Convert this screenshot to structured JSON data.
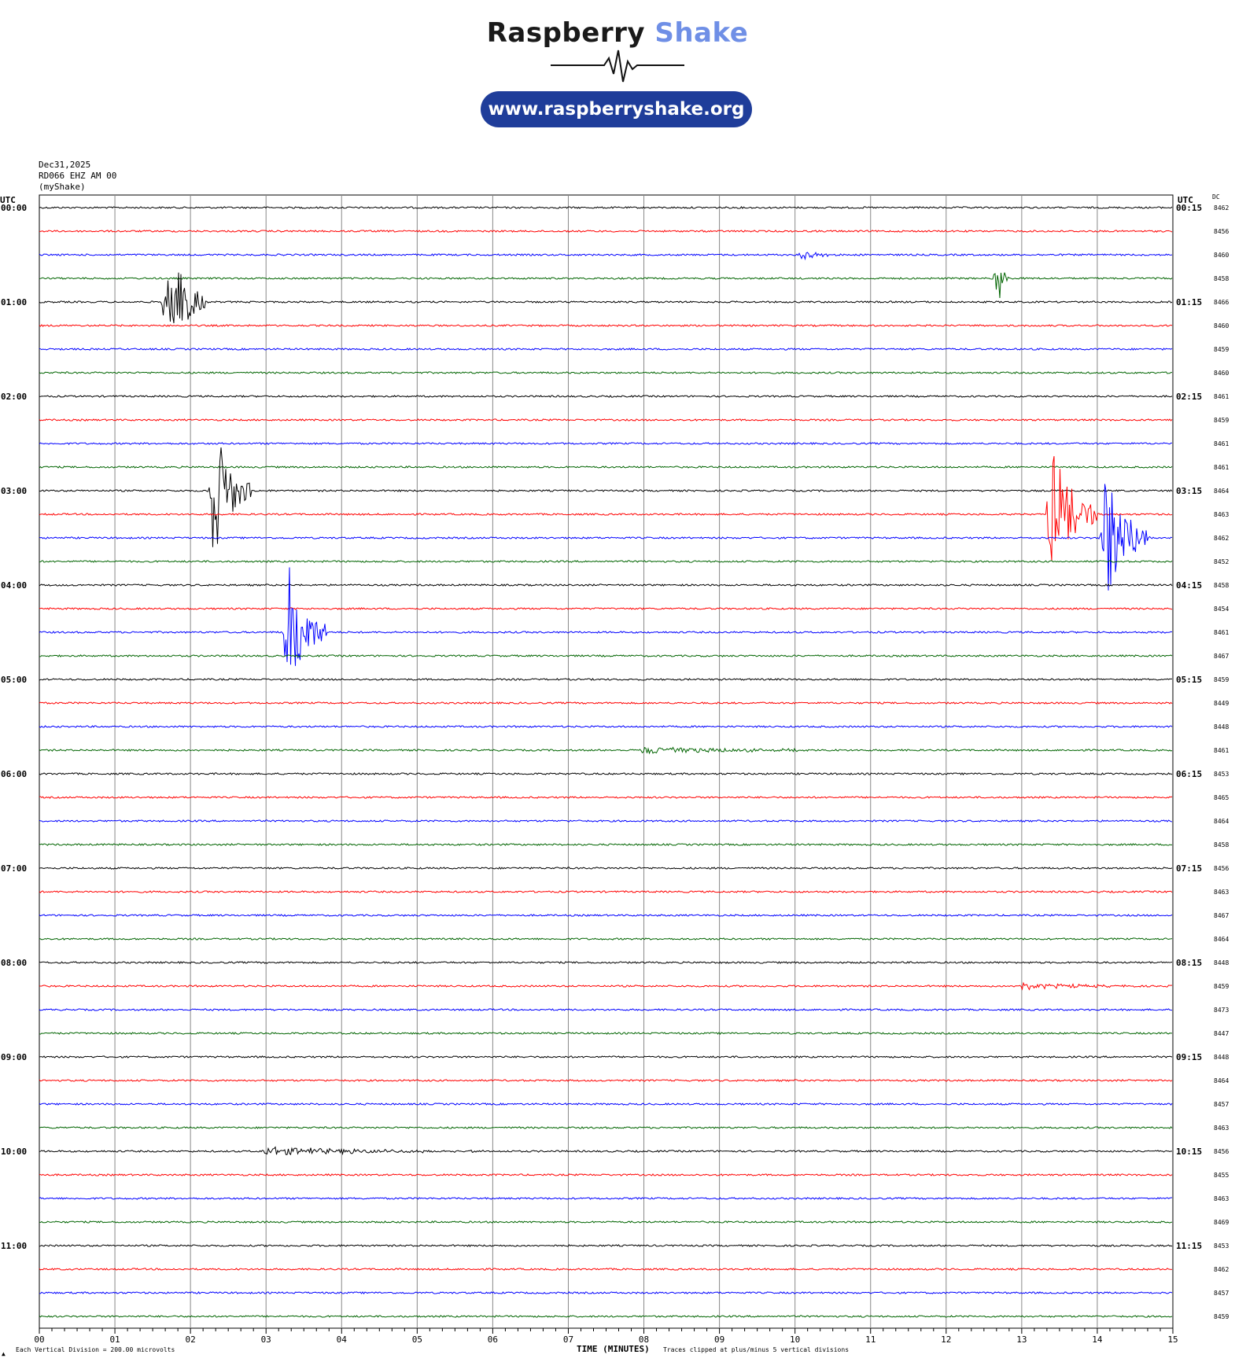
{
  "header": {
    "brand_main": "Raspberry",
    "brand_accent": "Shake",
    "url": "www.raspberryshake.org"
  },
  "meta": {
    "date": "Dec31,2025",
    "station": "RD066 EHZ AM 00",
    "network": "(myShake)"
  },
  "axis": {
    "left_caption": "UTC",
    "right_caption": "UTC",
    "dc_caption": "DC",
    "xlabel": "TIME (MINUTES)",
    "scale_note": "Each Vertical Division =  200.00 microvolts",
    "clip_note": "Traces clipped at plus/minus 5 vertical divisions",
    "corner_mark": "▲"
  },
  "colors": {
    "line_cycle": [
      "#000000",
      "#ff0000",
      "#0000ff",
      "#006400"
    ],
    "brand_dark": "#1a1a1a",
    "brand_accent": "#6f8fe6",
    "pill": "#1f3d9a",
    "grid": "#888888"
  },
  "chart_data": {
    "type": "line",
    "title": "",
    "xlabel": "TIME (MINUTES)",
    "ylabel": "UTC",
    "xlim": [
      0,
      15
    ],
    "x_ticks": [
      "00",
      "01",
      "02",
      "03",
      "04",
      "05",
      "06",
      "07",
      "08",
      "09",
      "10",
      "11",
      "12",
      "13",
      "14",
      "15"
    ],
    "left_labels": [
      "00:00",
      "01:00",
      "02:00",
      "03:00",
      "04:00",
      "05:00",
      "06:00",
      "07:00",
      "08:00",
      "09:00",
      "10:00",
      "11:00"
    ],
    "right_labels": [
      "00:15",
      "01:15",
      "02:15",
      "03:15",
      "04:15",
      "05:15",
      "06:15",
      "07:15",
      "08:15",
      "09:15",
      "10:15",
      "11:15"
    ],
    "dc_values": [
      8462,
      8456,
      8460,
      8458,
      8466,
      8460,
      8459,
      8460,
      8461,
      8459,
      8461,
      8461,
      8464,
      8463,
      8462,
      8452,
      8458,
      8454,
      8461,
      8467,
      8459,
      8449,
      8448,
      8461,
      8453,
      8465,
      8464,
      8458,
      8456,
      8463,
      8467,
      8464,
      8448,
      8459,
      8473,
      8447,
      8448,
      8464,
      8457,
      8463,
      8456,
      8455,
      8463,
      8469,
      8453,
      8462,
      8457,
      8459
    ],
    "rows_per_hour": 4,
    "minutes_per_row": 15,
    "clip_divisions": 5,
    "events": [
      {
        "row": 4,
        "minute": 1.7,
        "amplitude": 4.5,
        "duration": 0.5
      },
      {
        "row": 3,
        "minute": 12.7,
        "amplitude": 1.8,
        "duration": 0.12
      },
      {
        "row": 12,
        "minute": 2.3,
        "amplitude": 5.0,
        "duration": 0.5
      },
      {
        "row": 13,
        "minute": 13.4,
        "amplitude": 5.0,
        "duration": 0.6
      },
      {
        "row": 14,
        "minute": 14.1,
        "amplitude": 5.0,
        "duration": 0.6
      },
      {
        "row": 18,
        "minute": 3.3,
        "amplitude": 5.0,
        "duration": 0.5
      },
      {
        "row": 2,
        "minute": 10.1,
        "amplitude": 0.3,
        "duration": 0.5
      },
      {
        "row": 23,
        "minute": 8.0,
        "amplitude": 0.3,
        "duration": 2.5
      },
      {
        "row": 40,
        "minute": 3.0,
        "amplitude": 0.3,
        "duration": 3.0
      },
      {
        "row": 33,
        "minute": 13.0,
        "amplitude": 0.25,
        "duration": 1.5
      }
    ]
  }
}
